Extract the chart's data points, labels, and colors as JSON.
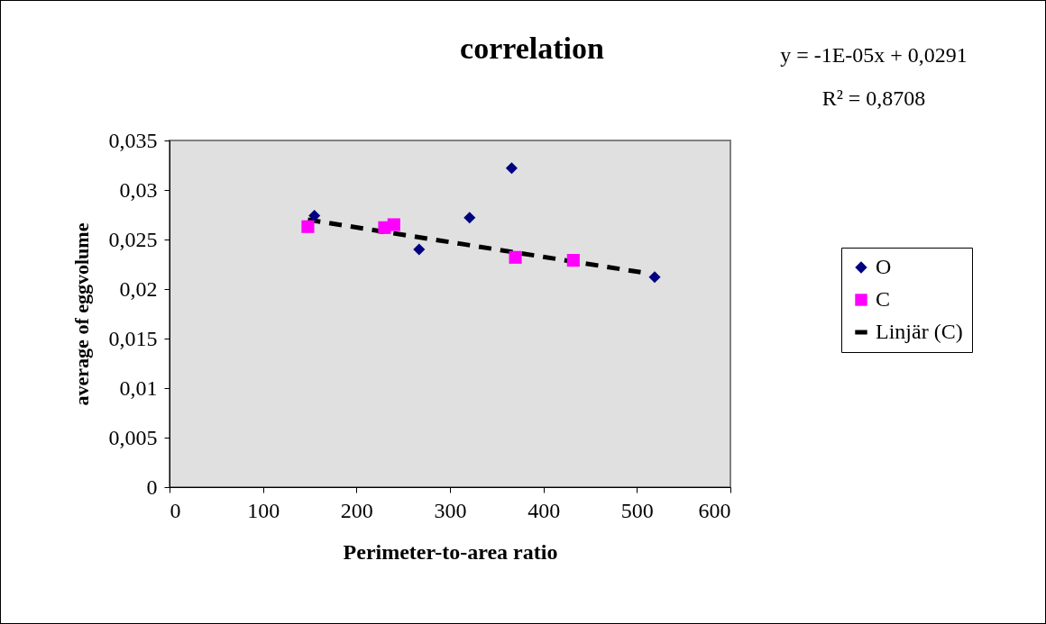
{
  "chart_data": {
    "type": "scatter",
    "title": "correlation",
    "xlabel": "Perimeter-to-area ratio",
    "ylabel": "average of eggvolume",
    "annotations": [
      "y = -1E-05x + 0,0291",
      "R² = 0,8708"
    ],
    "xlim": [
      0,
      600
    ],
    "xticks": [
      0,
      100,
      200,
      300,
      400,
      500,
      600
    ],
    "ylim": [
      0,
      0.035
    ],
    "yticks": [
      {
        "value": 0,
        "label": "0"
      },
      {
        "value": 0.005,
        "label": "0,005"
      },
      {
        "value": 0.01,
        "label": "0,01"
      },
      {
        "value": 0.015,
        "label": "0,015"
      },
      {
        "value": 0.02,
        "label": "0,02"
      },
      {
        "value": 0.025,
        "label": "0,025"
      },
      {
        "value": 0.03,
        "label": "0,03"
      },
      {
        "value": 0.035,
        "label": "0,035"
      }
    ],
    "grid": false,
    "legend": "right",
    "series": [
      {
        "name": "O",
        "marker": "diamond",
        "color": "#000080",
        "x": [
          155,
          267,
          321,
          366,
          519
        ],
        "values": [
          0.0274,
          0.024,
          0.0272,
          0.0322,
          0.0212
        ]
      },
      {
        "name": "C",
        "marker": "square",
        "color": "#ff00ff",
        "x": [
          148,
          230,
          240,
          370,
          432
        ],
        "values": [
          0.0263,
          0.0262,
          0.0265,
          0.0232,
          0.0229
        ]
      },
      {
        "name": "Linjär (C)",
        "type": "line",
        "line_style": "dashed",
        "color": "#000000",
        "x": [
          148,
          504
        ],
        "values": [
          0.027,
          0.0217
        ]
      }
    ]
  }
}
